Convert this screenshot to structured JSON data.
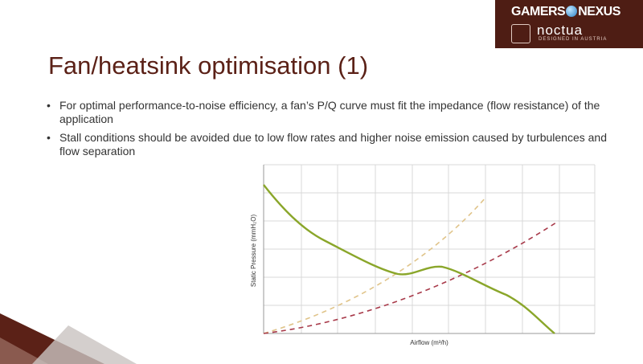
{
  "header": {
    "title": "Fan/heatsink optimisation (1)"
  },
  "bullets": [
    "For optimal performance-to-noise efficiency, a fan’s P/Q curve must fit the impedance (flow resistance) of the application",
    "Stall conditions should be avoided due to low flow rates and higher noise emission caused by turbulences and flow separation"
  ],
  "chart": {
    "y_label": "Static Pressure (mmH₂O)",
    "x_label": "Airflow (m³/h)"
  },
  "logo": {
    "brand_left": "GAMERS",
    "brand_right": "NEXUS",
    "name": "noctua",
    "tagline": "DESIGNED IN AUSTRIA"
  }
}
